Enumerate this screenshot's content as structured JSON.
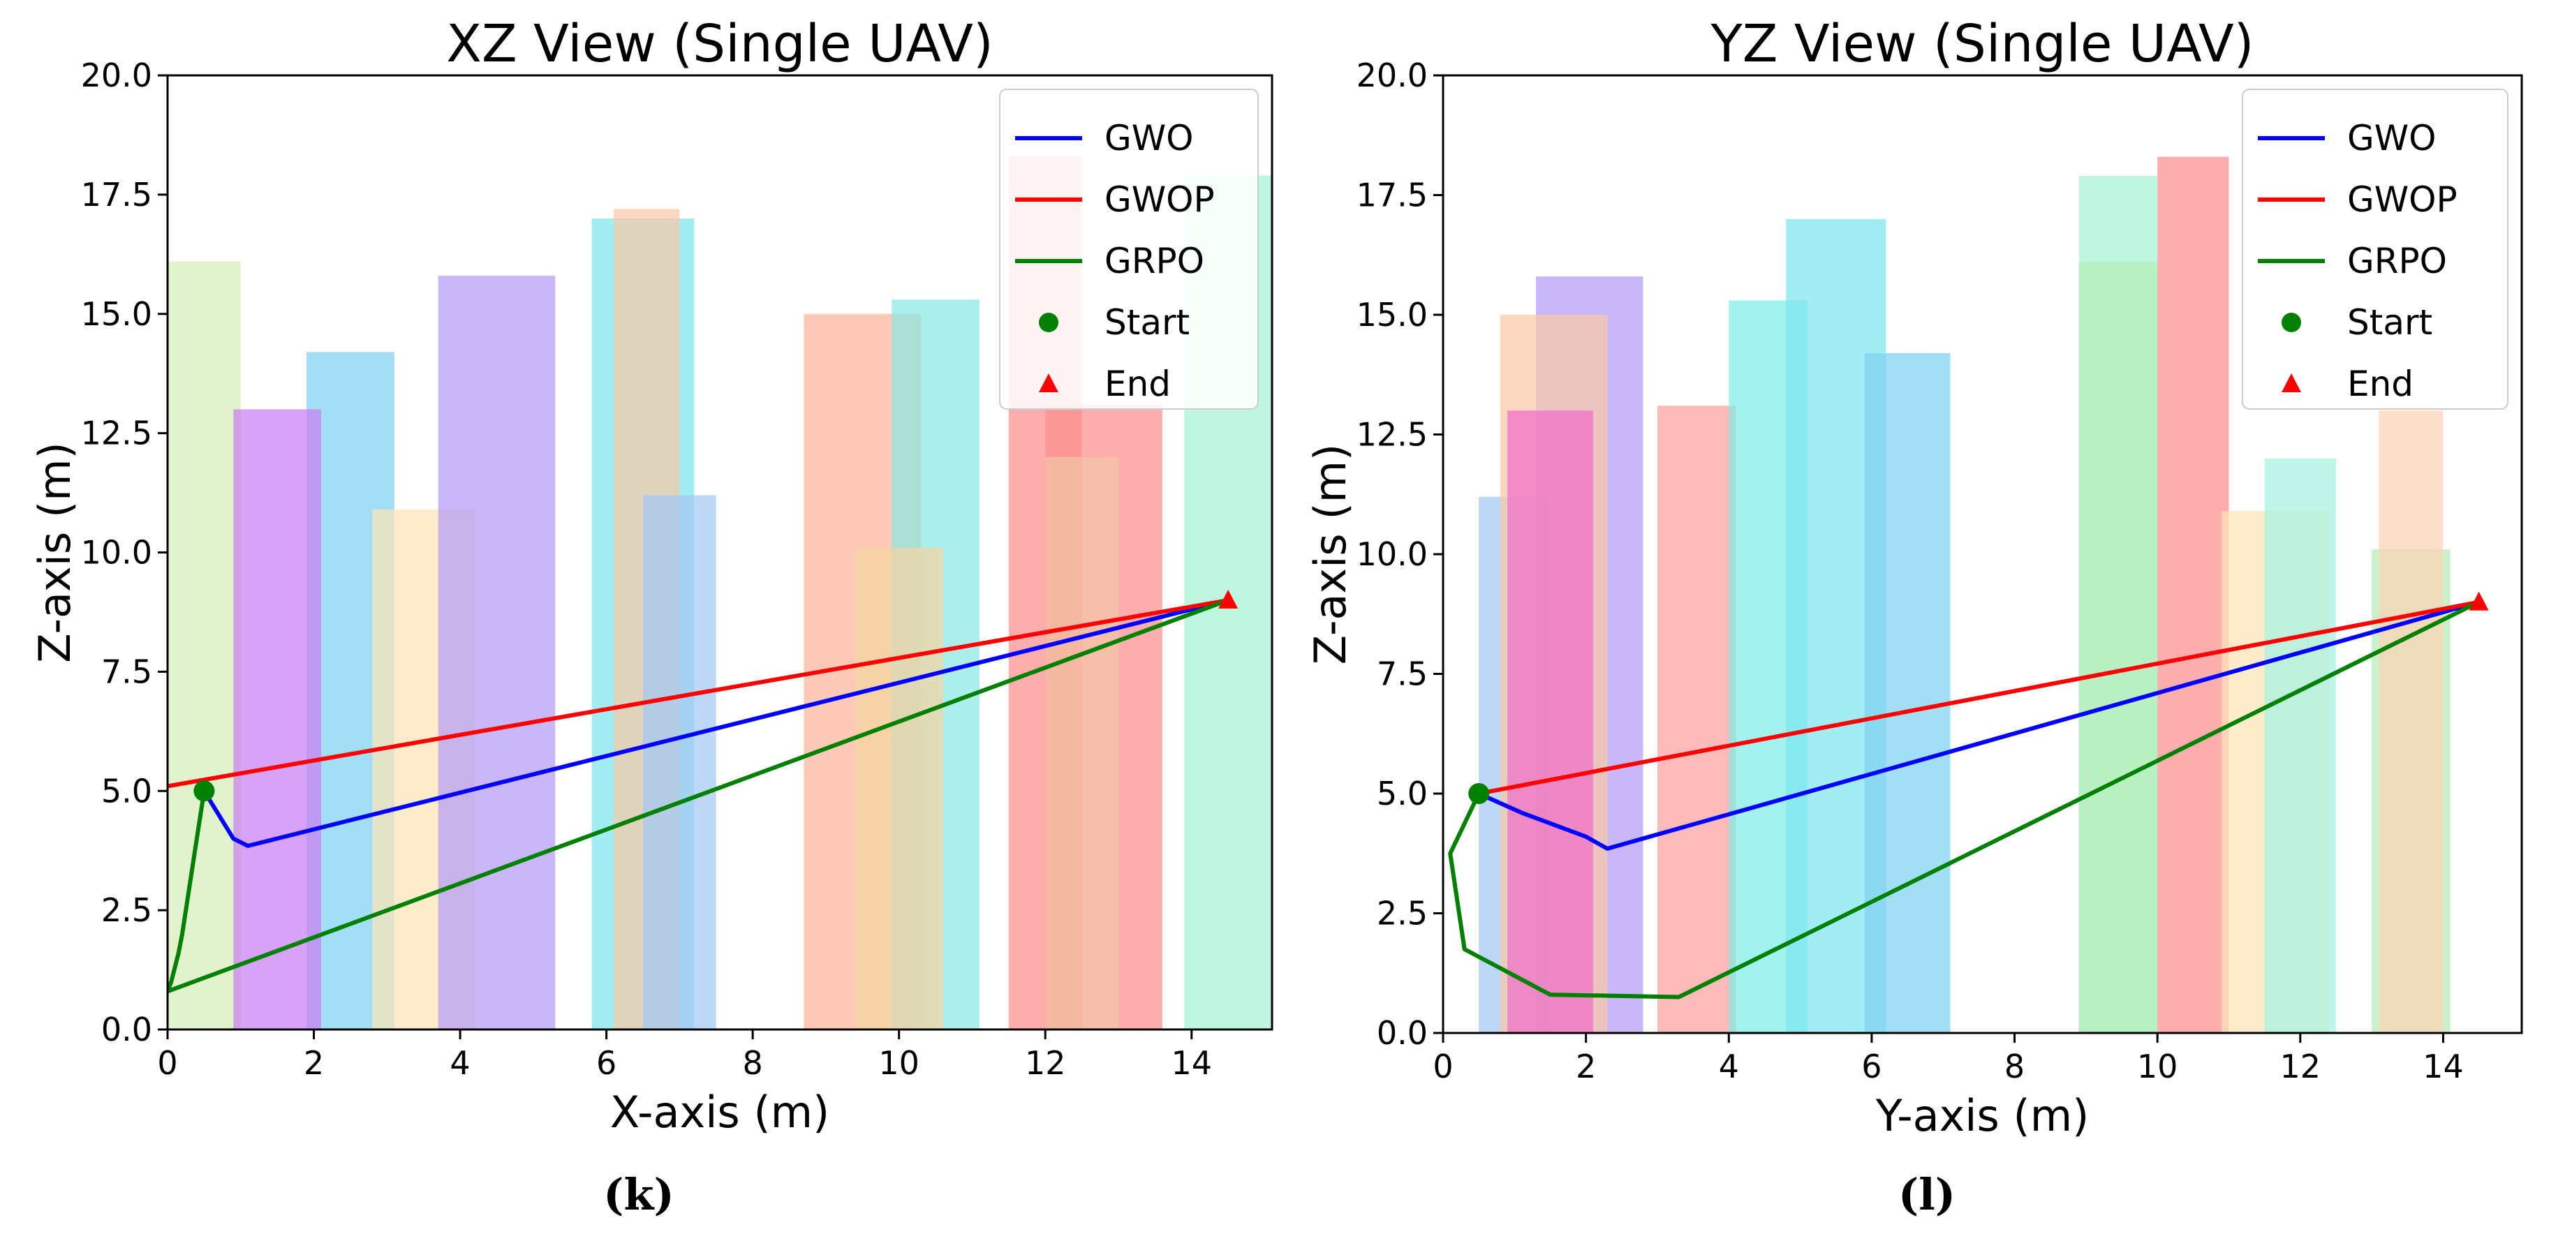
{
  "chart_data": [
    {
      "type": "line",
      "panel_caption": "(k)",
      "title": "XZ View (Single UAV)",
      "xlabel": "X-axis (m)",
      "ylabel": "Z-axis (m)",
      "xlim": [
        0,
        15.1
      ],
      "ylim": [
        0,
        20
      ],
      "xticks": [
        "0",
        "2",
        "4",
        "6",
        "8",
        "10",
        "12",
        "14"
      ],
      "yticks": [
        "0.0",
        "2.5",
        "5.0",
        "7.5",
        "10.0",
        "12.5",
        "15.0",
        "17.5",
        "20.0"
      ],
      "grid": false,
      "legend_position": "top-right",
      "obstacles": [
        {
          "x0": 0.0,
          "x1": 1.0,
          "height": 16.1,
          "color": "#d6edb8"
        },
        {
          "x0": 1.9,
          "x1": 3.1,
          "height": 14.2,
          "color": "#7fd3f0"
        },
        {
          "x0": 0.9,
          "x1": 2.1,
          "height": 13.0,
          "color": "#c97ff2"
        },
        {
          "x0": 2.8,
          "x1": 4.2,
          "height": 10.9,
          "color": "#fbe5b8"
        },
        {
          "x0": 3.7,
          "x1": 5.3,
          "height": 15.8,
          "color": "#b49bf5"
        },
        {
          "x0": 5.8,
          "x1": 7.2,
          "height": 17.0,
          "color": "#7ee6f0"
        },
        {
          "x0": 6.1,
          "x1": 7.0,
          "height": 17.2,
          "color": "#f8c9a6"
        },
        {
          "x0": 6.5,
          "x1": 7.5,
          "height": 11.2,
          "color": "#a3c8f3"
        },
        {
          "x0": 8.7,
          "x1": 10.3,
          "height": 15.0,
          "color": "#fbb59a"
        },
        {
          "x0": 9.9,
          "x1": 11.1,
          "height": 15.3,
          "color": "#8be8e2"
        },
        {
          "x0": 9.4,
          "x1": 10.6,
          "height": 10.1,
          "color": "#f4d5a3"
        },
        {
          "x0": 11.5,
          "x1": 12.5,
          "height": 18.3,
          "color": "#fb8f8f"
        },
        {
          "x0": 12.0,
          "x1": 13.6,
          "height": 13.1,
          "color": "#fb8f8f"
        },
        {
          "x0": 12.0,
          "x1": 13.0,
          "height": 12.0,
          "color": "#f2c5a6"
        },
        {
          "x0": 13.9,
          "x1": 15.1,
          "height": 17.9,
          "color": "#a6f3d2"
        }
      ],
      "series": [
        {
          "name": "GWO",
          "color": "#0000ff",
          "x": [
            0.5,
            0.7,
            0.9,
            1.1,
            14.5
          ],
          "y": [
            5.0,
            4.5,
            4.0,
            3.85,
            9.0
          ]
        },
        {
          "name": "GWOP",
          "color": "#ff0000",
          "x": [
            0.0,
            14.5
          ],
          "y": [
            5.1,
            9.0
          ]
        },
        {
          "name": "GRPO",
          "color": "#008000",
          "x": [
            0.5,
            0.4,
            0.3,
            0.2,
            0.15,
            0.05,
            0.0,
            14.5
          ],
          "y": [
            5.0,
            4.0,
            3.0,
            2.0,
            1.6,
            1.0,
            0.8,
            9.0
          ]
        }
      ],
      "start": {
        "name": "Start",
        "x": 0.5,
        "y": 5.0,
        "color": "#008000"
      },
      "end": {
        "name": "End",
        "x": 14.5,
        "y": 9.0,
        "color": "#ff0000"
      }
    },
    {
      "type": "line",
      "panel_caption": "(l)",
      "title": "YZ View (Single UAV)",
      "xlabel": "Y-axis (m)",
      "ylabel": "Z-axis (m)",
      "xlim": [
        0,
        15.1
      ],
      "ylim": [
        0,
        20
      ],
      "xticks": [
        "0",
        "2",
        "4",
        "6",
        "8",
        "10",
        "12",
        "14"
      ],
      "yticks": [
        "0.0",
        "2.5",
        "5.0",
        "7.5",
        "10.0",
        "12.5",
        "15.0",
        "17.5",
        "20.0"
      ],
      "grid": false,
      "legend_position": "top-right",
      "obstacles": [
        {
          "x0": 0.5,
          "x1": 1.5,
          "height": 11.2,
          "color": "#a3c8f3"
        },
        {
          "x0": 1.3,
          "x1": 2.8,
          "height": 15.8,
          "color": "#b49bf5"
        },
        {
          "x0": 0.8,
          "x1": 2.3,
          "height": 15.0,
          "color": "#f8c9a6"
        },
        {
          "x0": 0.9,
          "x1": 2.1,
          "height": 13.0,
          "color": "#f06fc8"
        },
        {
          "x0": 3.0,
          "x1": 4.1,
          "height": 13.1,
          "color": "#fb9f9f"
        },
        {
          "x0": 4.0,
          "x1": 5.1,
          "height": 15.3,
          "color": "#7eeee6"
        },
        {
          "x0": 4.8,
          "x1": 6.2,
          "height": 17.0,
          "color": "#7ee6f0"
        },
        {
          "x0": 5.9,
          "x1": 7.1,
          "height": 14.2,
          "color": "#7fd3f0"
        },
        {
          "x0": 8.9,
          "x1": 10.0,
          "height": 17.9,
          "color": "#a6f3d2"
        },
        {
          "x0": 8.9,
          "x1": 10.0,
          "height": 16.1,
          "color": "#b5ecb8"
        },
        {
          "x0": 10.0,
          "x1": 11.0,
          "height": 18.3,
          "color": "#fb8f8f"
        },
        {
          "x0": 10.9,
          "x1": 12.4,
          "height": 10.9,
          "color": "#fbe5b8"
        },
        {
          "x0": 11.5,
          "x1": 12.5,
          "height": 12.0,
          "color": "#a6f3e0"
        },
        {
          "x0": 13.0,
          "x1": 14.1,
          "height": 10.1,
          "color": "#b5ecb8"
        },
        {
          "x0": 13.1,
          "x1": 14.0,
          "height": 13.0,
          "color": "#fbd2b4"
        }
      ],
      "series": [
        {
          "name": "GWO",
          "color": "#0000ff",
          "x": [
            0.5,
            1.1,
            2.0,
            2.3,
            14.5
          ],
          "y": [
            5.0,
            4.6,
            4.1,
            3.85,
            9.0
          ]
        },
        {
          "name": "GWOP",
          "color": "#ff0000",
          "x": [
            0.5,
            14.5
          ],
          "y": [
            5.0,
            9.0
          ]
        },
        {
          "name": "GRPO",
          "color": "#008000",
          "x": [
            0.5,
            0.1,
            0.3,
            1.5,
            3.3,
            14.5
          ],
          "y": [
            5.0,
            3.75,
            1.75,
            0.8,
            0.75,
            9.0
          ]
        }
      ],
      "start": {
        "name": "Start",
        "x": 0.5,
        "y": 5.0,
        "color": "#008000"
      },
      "end": {
        "name": "End",
        "x": 14.5,
        "y": 9.0,
        "color": "#ff0000"
      }
    }
  ]
}
